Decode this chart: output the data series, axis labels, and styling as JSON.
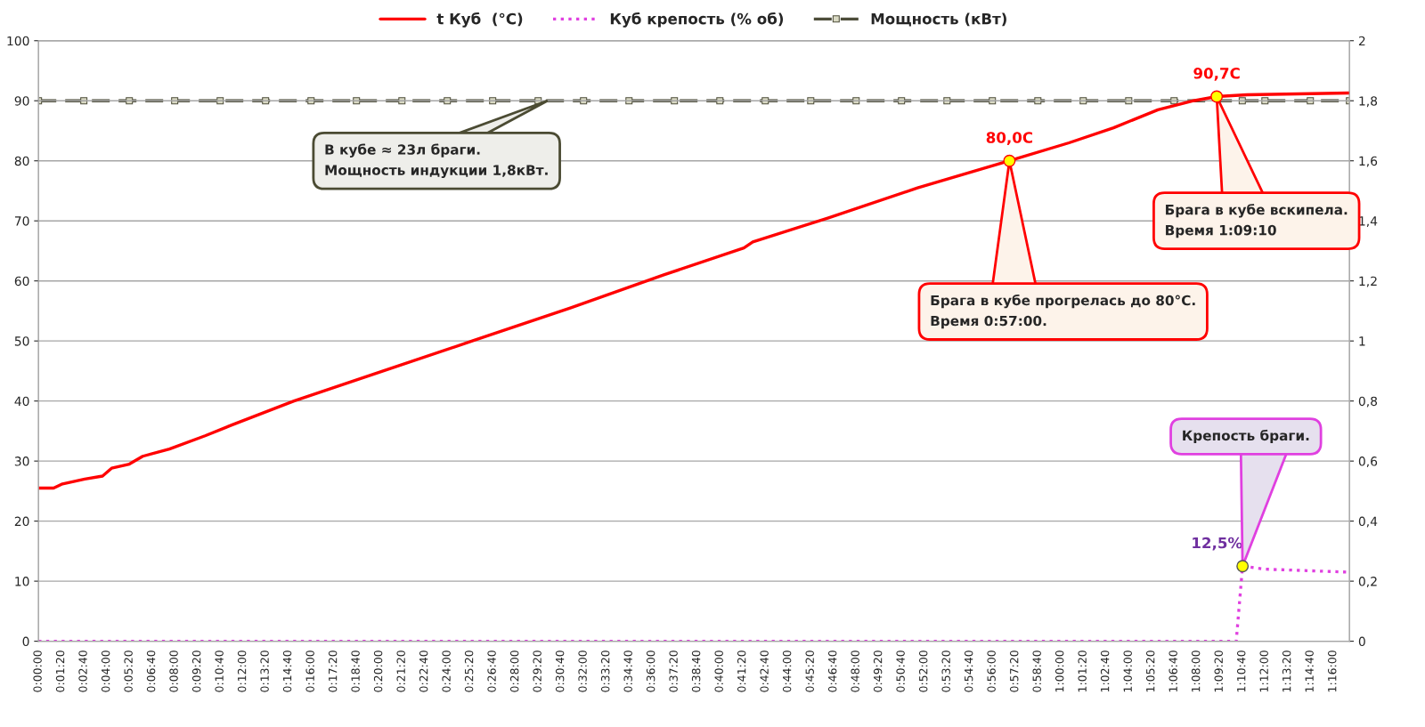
{
  "chart_data": {
    "type": "line",
    "x": [
      0,
      0.0148,
      0.0235,
      0.0453,
      0.0627,
      0.0715,
      0.0889,
      0.102,
      0.1281,
      0.163,
      0.1891,
      0.25,
      0.3372,
      0.4244,
      0.5203,
      0.6118,
      0.6902,
      0.6989,
      0.7729,
      0.8601,
      0.95,
      1.0083,
      1.0519,
      1.0953,
      1.1302,
      1.1528,
      1.1825,
      1.2827
    ],
    "series": [
      {
        "name": "t Куб  (°С)",
        "color": "#ff0000",
        "line_style": "solid",
        "marker": "none",
        "values": [
          25.5,
          25.5,
          26.2,
          27.0,
          27.5,
          28.8,
          29.5,
          30.8,
          32.0,
          34.2,
          36.0,
          40.0,
          45.0,
          50.0,
          55.5,
          61.0,
          65.5,
          66.5,
          70.5,
          75.5,
          80.0,
          83.0,
          85.5,
          88.5,
          90.0,
          90.7,
          91.0,
          91.3
        ],
        "value_labels": [
          null,
          null,
          null,
          null,
          null,
          null,
          null,
          null,
          null,
          null,
          null,
          null,
          null,
          null,
          null,
          null,
          null,
          null,
          null,
          null,
          "80,0C",
          null,
          null,
          null,
          null,
          "90,7C",
          null,
          null
        ]
      },
      {
        "name": "Куб крепость (% об)",
        "color": "#e040e0",
        "line_style": "dotted",
        "marker": "none",
        "x": [
          0,
          1.1719,
          1.1781,
          1.2,
          1.2827
        ],
        "values": [
          0,
          0,
          12.5,
          12.0,
          11.5
        ],
        "value_labels": [
          null,
          null,
          "12,5%",
          null,
          null
        ]
      },
      {
        "name": "Мощность (кВт)",
        "color": "#4d4d3a",
        "line_style": "dashed",
        "marker": "square",
        "axis": "y2",
        "x": [
          0,
          0.0444,
          0.0889,
          0.1333,
          0.1778,
          0.2222,
          0.2667,
          0.3111,
          0.3556,
          0.4,
          0.4444,
          0.4889,
          0.5333,
          0.5778,
          0.6222,
          0.6667,
          0.7111,
          0.7556,
          0.8,
          0.8444,
          0.8889,
          0.9333,
          0.9778,
          1.0222,
          1.0667,
          1.1111,
          1.1778,
          1.2,
          1.2444,
          1.2827
        ],
        "values": [
          1.8,
          1.8,
          1.8,
          1.8,
          1.8,
          1.8,
          1.8,
          1.8,
          1.8,
          1.8,
          1.8,
          1.8,
          1.8,
          1.8,
          1.8,
          1.8,
          1.8,
          1.8,
          1.8,
          1.8,
          1.8,
          1.8,
          1.8,
          1.8,
          1.8,
          1.8,
          1.8,
          1.8,
          1.8,
          1.8
        ]
      }
    ],
    "xlim": [
      0,
      1.2827
    ],
    "xticks": [
      {
        "value": 0,
        "label": "0:00:00"
      },
      {
        "value": 0.0222,
        "label": "0:01:20"
      },
      {
        "value": 0.0444,
        "label": "0:02:40"
      },
      {
        "value": 0.0667,
        "label": "0:04:00"
      },
      {
        "value": 0.0889,
        "label": "0:05:20"
      },
      {
        "value": 0.1111,
        "label": "0:06:40"
      },
      {
        "value": 0.1333,
        "label": "0:08:00"
      },
      {
        "value": 0.1556,
        "label": "0:09:20"
      },
      {
        "value": 0.1778,
        "label": "0:10:40"
      },
      {
        "value": 0.2,
        "label": "0:12:00"
      },
      {
        "value": 0.2222,
        "label": "0:13:20"
      },
      {
        "value": 0.2444,
        "label": "0:14:40"
      },
      {
        "value": 0.2667,
        "label": "0:16:00"
      },
      {
        "value": 0.2889,
        "label": "0:17:20"
      },
      {
        "value": 0.3111,
        "label": "0:18:40"
      },
      {
        "value": 0.3333,
        "label": "0:20:00"
      },
      {
        "value": 0.3556,
        "label": "0:21:20"
      },
      {
        "value": 0.3778,
        "label": "0:22:40"
      },
      {
        "value": 0.4,
        "label": "0:24:00"
      },
      {
        "value": 0.4222,
        "label": "0:25:20"
      },
      {
        "value": 0.4444,
        "label": "0:26:40"
      },
      {
        "value": 0.4667,
        "label": "0:28:00"
      },
      {
        "value": 0.4889,
        "label": "0:29:20"
      },
      {
        "value": 0.5111,
        "label": "0:30:40"
      },
      {
        "value": 0.5333,
        "label": "0:32:00"
      },
      {
        "value": 0.5556,
        "label": "0:33:20"
      },
      {
        "value": 0.5778,
        "label": "0:34:40"
      },
      {
        "value": 0.6,
        "label": "0:36:00"
      },
      {
        "value": 0.6222,
        "label": "0:37:20"
      },
      {
        "value": 0.6444,
        "label": "0:38:40"
      },
      {
        "value": 0.6667,
        "label": "0:40:00"
      },
      {
        "value": 0.6889,
        "label": "0:41:20"
      },
      {
        "value": 0.7111,
        "label": "0:42:40"
      },
      {
        "value": 0.7333,
        "label": "0:44:00"
      },
      {
        "value": 0.7556,
        "label": "0:45:20"
      },
      {
        "value": 0.7778,
        "label": "0:46:40"
      },
      {
        "value": 0.8,
        "label": "0:48:00"
      },
      {
        "value": 0.8222,
        "label": "0:49:20"
      },
      {
        "value": 0.8444,
        "label": "0:50:40"
      },
      {
        "value": 0.8667,
        "label": "0:52:00"
      },
      {
        "value": 0.8889,
        "label": "0:53:20"
      },
      {
        "value": 0.9111,
        "label": "0:54:40"
      },
      {
        "value": 0.9333,
        "label": "0:56:00"
      },
      {
        "value": 0.9556,
        "label": "0:57:20"
      },
      {
        "value": 0.9778,
        "label": "0:58:40"
      },
      {
        "value": 1.0,
        "label": "1:00:00"
      },
      {
        "value": 1.0222,
        "label": "1:01:20"
      },
      {
        "value": 1.0444,
        "label": "1:02:40"
      },
      {
        "value": 1.0667,
        "label": "1:04:00"
      },
      {
        "value": 1.0889,
        "label": "1:05:20"
      },
      {
        "value": 1.1111,
        "label": "1:06:40"
      },
      {
        "value": 1.1333,
        "label": "1:08:00"
      },
      {
        "value": 1.1556,
        "label": "1:09:20"
      },
      {
        "value": 1.1778,
        "label": "1:10:40"
      },
      {
        "value": 1.2,
        "label": "1:12:00"
      },
      {
        "value": 1.2222,
        "label": "1:13:20"
      },
      {
        "value": 1.2444,
        "label": "1:14:40"
      },
      {
        "value": 1.2667,
        "label": "1:16:00"
      }
    ],
    "ylim": [
      0,
      100
    ],
    "yticks": [
      0,
      10,
      20,
      30,
      40,
      50,
      60,
      70,
      80,
      90,
      100
    ],
    "y2lim": [
      0,
      2
    ],
    "y2ticks": [
      0,
      {
        "value": 0.2,
        "label": "0,2"
      },
      {
        "value": 0.4,
        "label": "0,4"
      },
      {
        "value": 0.6,
        "label": "0,6"
      },
      {
        "value": 0.8,
        "label": "0,8"
      },
      1,
      {
        "value": 1.2,
        "label": "1,2"
      },
      {
        "value": 1.4,
        "label": "1,4"
      },
      {
        "value": 1.6,
        "label": "1,6"
      },
      {
        "value": 1.8,
        "label": "1,8"
      },
      2
    ],
    "annotations": [
      {
        "text": "В кубе ≈ 23л браги.\nМощность индукции 1,8кВт.",
        "x": 0.498,
        "y": 90
      },
      {
        "text": "Брага в кубе прогрелась до 80°С.\nВремя 0:57:00.",
        "x": 0.95,
        "y": 80
      },
      {
        "text": "Брага в кубе вскипела.\nВремя 1:09:10",
        "x": 1.1528,
        "y": 90.7
      },
      {
        "text": "Крепость браги.",
        "x": 1.1781,
        "y": 12.5
      }
    ],
    "grid": "y",
    "legend": "top"
  }
}
